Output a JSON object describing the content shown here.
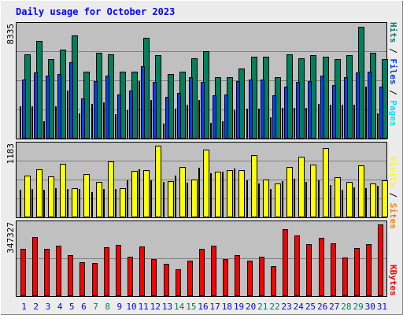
{
  "title": "Daily usage for October 2023",
  "colors": {
    "background": "#ececec",
    "plot_bg": "#c0c0c0",
    "title_text": "#0000ff",
    "hits": "#00805c",
    "files": "#0040ff",
    "pages": "#00e0ff",
    "visits": "#ffff00",
    "sites": "#ff8000",
    "kbytes": "#ff0000",
    "weekday_label": "#0000ff",
    "weekend_label": "#00805c"
  },
  "right_labels": {
    "top": [
      {
        "text": "Hits",
        "color": "#00805c"
      },
      {
        "text": " / ",
        "color": "#000000"
      },
      {
        "text": "Files",
        "color": "#0040ff"
      },
      {
        "text": " / ",
        "color": "#000000"
      },
      {
        "text": "Pages",
        "color": "#00e0ff"
      }
    ],
    "middle": [
      {
        "text": "Visits",
        "color": "#ffff00"
      },
      {
        "text": " / ",
        "color": "#000000"
      },
      {
        "text": "Sites",
        "color": "#ff8000"
      }
    ],
    "bottom": [
      {
        "text": "KBytes",
        "color": "#ff0000"
      }
    ]
  },
  "chart_data": [
    {
      "type": "bar",
      "panel": "hits-files-pages",
      "y_max_label": "8335",
      "ylim": [
        0,
        8335
      ],
      "x": [
        "1",
        "2",
        "3",
        "4",
        "5",
        "6",
        "7",
        "8",
        "9",
        "10",
        "11",
        "12",
        "13",
        "14",
        "15",
        "16",
        "17",
        "18",
        "19",
        "20",
        "21",
        "22",
        "23",
        "24",
        "25",
        "26",
        "27",
        "28",
        "29",
        "30",
        "31"
      ],
      "weekend": [
        false,
        false,
        false,
        false,
        false,
        false,
        true,
        true,
        false,
        false,
        false,
        false,
        false,
        true,
        true,
        false,
        false,
        false,
        false,
        false,
        true,
        true,
        false,
        false,
        false,
        false,
        false,
        true,
        true,
        false,
        false
      ],
      "series": [
        {
          "name": "Hits",
          "values": [
            6300,
            7300,
            5900,
            6600,
            7700,
            5000,
            6400,
            6300,
            5000,
            5000,
            7500,
            6200,
            4800,
            5000,
            6000,
            6500,
            4600,
            4600,
            5200,
            6100,
            6100,
            4600,
            6300,
            6000,
            6200,
            6100,
            5900,
            6200,
            8335,
            6400,
            5900
          ]
        },
        {
          "name": "Files",
          "values": [
            4400,
            4900,
            4700,
            4800,
            5700,
            3000,
            4300,
            4700,
            3300,
            3600,
            5400,
            4200,
            3100,
            3400,
            4600,
            4200,
            3200,
            3300,
            4300,
            4400,
            4400,
            3200,
            3900,
            4200,
            4300,
            4700,
            4000,
            4600,
            4900,
            5000,
            3900
          ]
        },
        {
          "name": "Pages",
          "values": [
            2400,
            2400,
            1300,
            2400,
            3600,
            1900,
            2600,
            2700,
            1800,
            2100,
            4300,
            2900,
            1100,
            2200,
            2500,
            2900,
            1200,
            1300,
            2100,
            2200,
            2200,
            1600,
            2300,
            2300,
            2300,
            2600,
            2500,
            2500,
            2500,
            3900,
            1900
          ]
        }
      ]
    },
    {
      "type": "bar",
      "panel": "visits-sites",
      "y_max_label": "1183",
      "ylim": [
        0,
        1183
      ],
      "x": [
        "1",
        "2",
        "3",
        "4",
        "5",
        "6",
        "7",
        "8",
        "9",
        "10",
        "11",
        "12",
        "13",
        "14",
        "15",
        "16",
        "17",
        "18",
        "19",
        "20",
        "21",
        "22",
        "23",
        "24",
        "25",
        "26",
        "27",
        "28",
        "29",
        "30",
        "31"
      ],
      "series": [
        {
          "name": "Visits",
          "values": [
            690,
            790,
            680,
            880,
            480,
            720,
            580,
            925,
            480,
            770,
            780,
            1183,
            600,
            830,
            620,
            1112,
            750,
            780,
            780,
            1020,
            620,
            560,
            830,
            1004,
            870,
            1140,
            660,
            590,
            860,
            560,
            610
          ]
        },
        {
          "name": "Sites",
          "values": [
            460,
            470,
            460,
            480,
            470,
            470,
            420,
            470,
            470,
            610,
            790,
            610,
            580,
            690,
            570,
            820,
            730,
            750,
            800,
            610,
            560,
            470,
            600,
            630,
            590,
            610,
            530,
            460,
            490,
            480,
            520
          ]
        }
      ]
    },
    {
      "type": "bar",
      "panel": "kbytes",
      "y_max_label": "347327",
      "ylim": [
        0,
        347327
      ],
      "x": [
        "1",
        "2",
        "3",
        "4",
        "5",
        "6",
        "7",
        "8",
        "9",
        "10",
        "11",
        "12",
        "13",
        "14",
        "15",
        "16",
        "17",
        "18",
        "19",
        "20",
        "21",
        "22",
        "23",
        "24",
        "25",
        "26",
        "27",
        "28",
        "29",
        "30",
        "31"
      ],
      "series": [
        {
          "name": "KBytes",
          "values": [
            230000,
            284000,
            227000,
            243000,
            199000,
            164000,
            160000,
            235000,
            246000,
            190000,
            240000,
            180000,
            157000,
            131000,
            172000,
            227000,
            244000,
            179000,
            200000,
            173000,
            189000,
            145000,
            324000,
            294000,
            252000,
            283000,
            255000,
            187000,
            233000,
            252000,
            347327
          ]
        }
      ]
    }
  ]
}
